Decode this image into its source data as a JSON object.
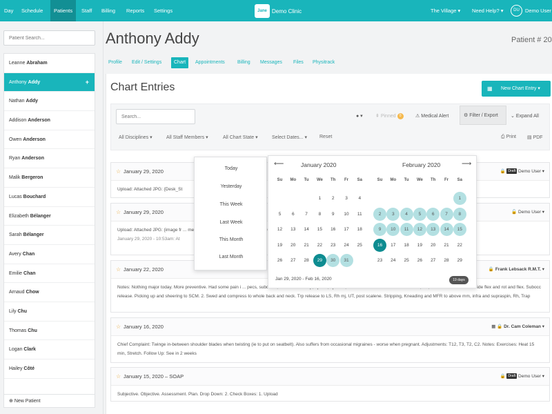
{
  "topnav": {
    "items": [
      "Day",
      "Schedule",
      "Patients",
      "Staff",
      "Billing",
      "Reports",
      "Settings"
    ],
    "brand_logo": "Jane",
    "brand": "Demo Clinic",
    "location": "The Village",
    "help": "Need Help?",
    "avatar": "DU",
    "user": "Demo User"
  },
  "sidebar": {
    "search_placeholder": "Patient Search...",
    "patients": [
      {
        "first": "Leanne",
        "last": "Abraham"
      },
      {
        "first": "Anthony",
        "last": "Addy"
      },
      {
        "first": "Nathan",
        "last": "Addy"
      },
      {
        "first": "Addison",
        "last": "Anderson"
      },
      {
        "first": "Owen",
        "last": "Anderson"
      },
      {
        "first": "Ryan",
        "last": "Anderson"
      },
      {
        "first": "Malik",
        "last": "Bergeron"
      },
      {
        "first": "Lucas",
        "last": "Bouchard"
      },
      {
        "first": "Elizabeth",
        "last": "Bélanger"
      },
      {
        "first": "Sarah",
        "last": "Bélanger"
      },
      {
        "first": "Avery",
        "last": "Chan"
      },
      {
        "first": "Emilie",
        "last": "Chan"
      },
      {
        "first": "Arnaud",
        "last": "Chow"
      },
      {
        "first": "Lily",
        "last": "Chu"
      },
      {
        "first": "Thomas",
        "last": "Chu"
      },
      {
        "first": "Logan",
        "last": "Clark"
      },
      {
        "first": "Hailey",
        "last": "Côté"
      }
    ],
    "active_index": 1,
    "new_patient": "New Patient"
  },
  "patient": {
    "name": "Anthony Addy",
    "number_label": "Patient # 20",
    "tabs": [
      "Profile",
      "Edit / Settings",
      "Chart",
      "Appointments",
      "Billing",
      "Messages",
      "Files",
      "Physitrack"
    ],
    "active_tab": "Chart"
  },
  "chart": {
    "title": "Chart Entries",
    "new_entry": "New Chart Entry",
    "search_placeholder": "Search...",
    "pinned": "Pinned",
    "pinned_count": "0",
    "medical_alert": "Medical Alert",
    "filter_export": "Filter / Export",
    "expand_all": "Expand All",
    "filters": [
      "All Disciplines",
      "All Staff Members",
      "All Chart State",
      "Select Dates..."
    ],
    "reset": "Reset",
    "print": "Print",
    "pdf": "PDF"
  },
  "entries": [
    {
      "date": "January 29, 2020",
      "author": "Demo User",
      "draft": "Draft",
      "body": "Upload: Attached JPG: {Desk_St",
      "sub": ""
    },
    {
      "date": "January 29, 2020",
      "author": "Demo User",
      "draft": "",
      "body": "Upload: Attached JPG: {image fr ... mendment Wednesday January 29, 2020 - 10:54am: Attached JPG: { ... mendment Wednesday",
      "sub": "January 29, 2020 - 10:53am: At"
    },
    {
      "date": "January 22, 2020",
      "author": "Frank Lebsack R.M.T.",
      "draft": "",
      "body": "Notes: Nothing major today. More preventive. Had some pain i ... pecs, subclave, scalenes semisp, splenii, spinalis, SUbocc. Passive stretch to scalenes, LS, and SCM. PROM into side flex and rot and flex. Subocc release. Picking up and sheering to SCM. 2. Swed and compress to whole back and neck. Trp release to LS, Rh mj, UT, post scalene. Stripping, Kneading and MFR to above mm, infra and supraspin, Rh, Trap",
      "sub": ""
    },
    {
      "date": "January 16, 2020",
      "author": "Dr. Cam Coleman",
      "draft": "",
      "body": "Chief Complaint: Twinge in-between shoulder blades when twisting (ie to put on seatbelt). Also suffers from occasional migraines - worse when pregnant. Adjustments: T12, T3, T2, C2. Notes: Exercises: Heat 15 min, Stretch. Follow Up: See in 2 weeks",
      "sub": ""
    },
    {
      "date": "January 15, 2020 – SOAP",
      "author": "Demo User",
      "draft": "Draft",
      "body": "Subjective. Objective. Assessment. Plan. Drop Down: 2. Check Boxes: 1. Upload",
      "sub": ""
    }
  ],
  "date_picker": {
    "quick": [
      "Today",
      "Yesterday",
      "This Week",
      "Last Week",
      "This Month",
      "Last Month"
    ],
    "weekdays": [
      "Su",
      "Mo",
      "Tu",
      "We",
      "Th",
      "Fr",
      "Sa"
    ],
    "january": {
      "title": "January 2020",
      "days": [
        "1",
        "2",
        "3",
        "4",
        "5",
        "6",
        "7",
        "8",
        "9",
        "10",
        "11",
        "12",
        "13",
        "14",
        "15",
        "16",
        "17",
        "18",
        "19",
        "20",
        "21",
        "22",
        "23",
        "24",
        "25",
        "26",
        "27",
        "28",
        "29",
        "30",
        "31"
      ]
    },
    "february": {
      "title": "February 2020",
      "days": [
        "1",
        "2",
        "3",
        "4",
        "5",
        "6",
        "7",
        "8",
        "9",
        "10",
        "11",
        "12",
        "13",
        "14",
        "15",
        "16",
        "17",
        "18",
        "19",
        "20",
        "21",
        "22",
        "23",
        "24",
        "25",
        "26",
        "27",
        "28",
        "29"
      ]
    },
    "range_text": "Jan 29, 2020 - Feb 16, 2020",
    "days_badge": "19 days"
  },
  "colors": {
    "accent": "#19b5bb",
    "accent_dark": "#0e8c91",
    "range": "#b3e0e2"
  }
}
